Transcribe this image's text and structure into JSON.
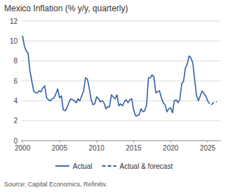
{
  "chart_data": {
    "type": "line",
    "title": "Mexico Inflation (% y/y, quarterly)",
    "annotations": [
      "Source: Capital Economics, Refinitiv."
    ],
    "xlim": [
      1999.8,
      2026.8
    ],
    "xticks": [
      2000,
      2005,
      2010,
      2015,
      2020,
      2025
    ],
    "ylim": [
      0,
      12
    ],
    "yticks": [
      0,
      2,
      4,
      6,
      8,
      10,
      12
    ],
    "grid": true,
    "legend": "bottom",
    "series": [
      {
        "name": "Actual",
        "color": "#2E5FA3",
        "line_style": "solid",
        "x": [
          2000.0,
          2000.25,
          2000.5,
          2000.75,
          2001.0,
          2001.25,
          2001.5,
          2001.75,
          2002.0,
          2002.25,
          2002.5,
          2002.75,
          2003.0,
          2003.25,
          2003.5,
          2003.75,
          2004.0,
          2004.25,
          2004.5,
          2004.75,
          2005.0,
          2005.25,
          2005.5,
          2005.75,
          2006.0,
          2006.25,
          2006.5,
          2006.75,
          2007.0,
          2007.25,
          2007.5,
          2007.75,
          2008.0,
          2008.25,
          2008.5,
          2008.75,
          2009.0,
          2009.25,
          2009.5,
          2009.75,
          2010.0,
          2010.25,
          2010.5,
          2010.75,
          2011.0,
          2011.25,
          2011.5,
          2011.75,
          2012.0,
          2012.25,
          2012.5,
          2012.75,
          2013.0,
          2013.25,
          2013.5,
          2013.75,
          2014.0,
          2014.25,
          2014.5,
          2014.75,
          2015.0,
          2015.25,
          2015.5,
          2015.75,
          2016.0,
          2016.25,
          2016.5,
          2016.75,
          2017.0,
          2017.25,
          2017.5,
          2017.75,
          2018.0,
          2018.25,
          2018.5,
          2018.75,
          2019.0,
          2019.25,
          2019.5,
          2019.75,
          2020.0,
          2020.25,
          2020.5,
          2020.75,
          2021.0,
          2021.25,
          2021.5,
          2021.75,
          2022.0,
          2022.25,
          2022.5,
          2022.75,
          2023.0,
          2023.25,
          2023.5,
          2023.75,
          2024.0,
          2024.25,
          2024.5,
          2024.75,
          2025.0
        ],
        "values": [
          10.5,
          9.5,
          9.0,
          8.8,
          7.0,
          6.0,
          5.0,
          4.8,
          4.8,
          5.0,
          4.9,
          5.3,
          5.5,
          4.3,
          4.1,
          4.0,
          4.2,
          4.3,
          4.7,
          5.2,
          4.3,
          4.5,
          3.1,
          3.0,
          3.3,
          3.8,
          4.2,
          4.1,
          4.0,
          3.8,
          4.2,
          4.0,
          4.5,
          5.0,
          6.3,
          6.2,
          5.3,
          4.2,
          3.6,
          3.7,
          4.4,
          4.2,
          3.9,
          4.0,
          3.8,
          3.2,
          3.4,
          3.4,
          4.6,
          4.4,
          4.2,
          4.6,
          3.5,
          3.7,
          3.5,
          3.9,
          4.1,
          3.8,
          4.1,
          4.2,
          3.1,
          2.5,
          2.5,
          2.6,
          3.2,
          2.9,
          3.0,
          3.6,
          6.3,
          6.3,
          6.6,
          6.4,
          4.8,
          4.9,
          5.0,
          4.3,
          3.8,
          3.6,
          2.9,
          3.2,
          3.3,
          2.8,
          4.0,
          4.1,
          3.8,
          4.2,
          5.7,
          6.0,
          7.3,
          7.7,
          8.5,
          8.3,
          7.8,
          6.1,
          4.5,
          4.0,
          4.5,
          5.0,
          4.7,
          4.5,
          4.0
        ]
      },
      {
        "name": "Actual & forecast",
        "color": "#2E5FA3",
        "line_style": "dashed",
        "x": [
          2025.0,
          2025.25,
          2025.5,
          2025.75,
          2026.0,
          2026.25
        ],
        "values": [
          4.0,
          3.7,
          3.6,
          3.8,
          3.9,
          3.9
        ]
      }
    ]
  }
}
